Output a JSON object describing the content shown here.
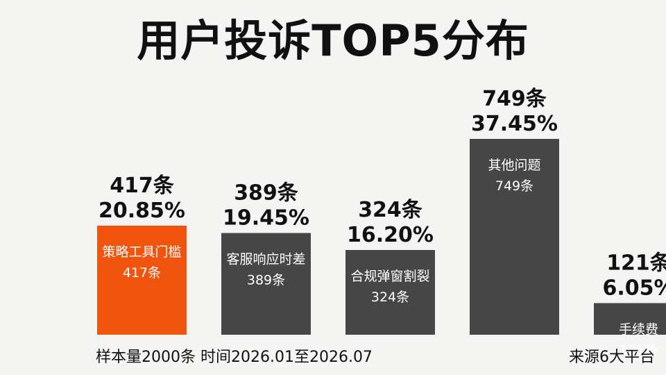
{
  "title": "用户投诉TOP5分布",
  "footer": {
    "sample": "样本量2000条 时间2026.01至2026.07",
    "source": "来源6大平台"
  },
  "colors": {
    "highlight": "#f0540e",
    "bar": "#464646",
    "background": "#f4f4f2"
  },
  "chart_data": {
    "type": "bar",
    "title": "用户投诉TOP5分布",
    "categories": [
      "策略工具门槛",
      "客服响应时差",
      "合规弹窗割裂",
      "其他问题",
      "手续费"
    ],
    "values": [
      417,
      389,
      324,
      749,
      121
    ],
    "value_labels": [
      "417条",
      "389条",
      "324条",
      "749条",
      "121条"
    ],
    "percent_labels": [
      "20.85%",
      "19.45%",
      "16.20%",
      "37.45%",
      "6.05%"
    ],
    "highlight_index": 0,
    "ylim": [
      0,
      749
    ],
    "grid": false,
    "legend": "none"
  }
}
